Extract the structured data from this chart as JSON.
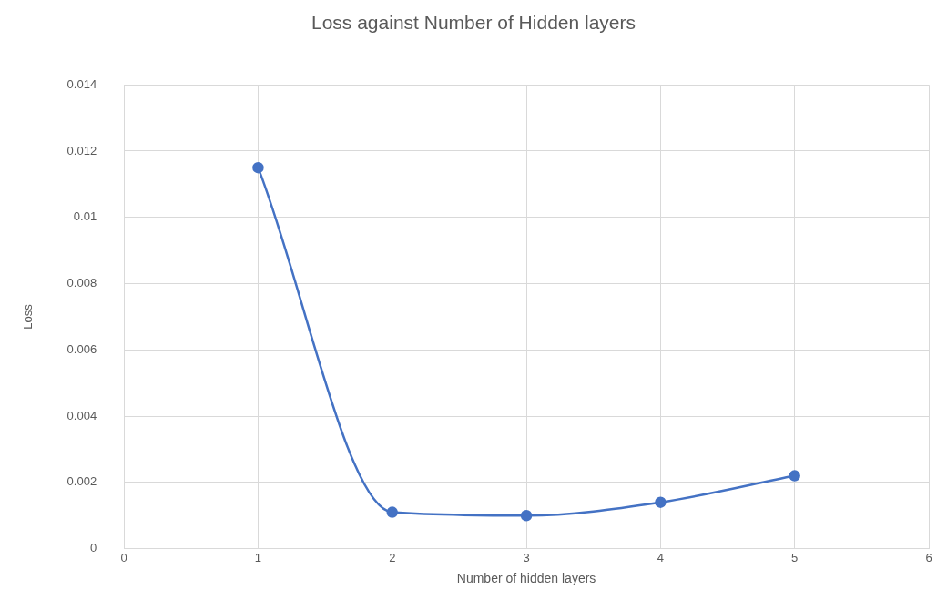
{
  "chart_data": {
    "type": "line",
    "title": "Loss against Number of Hidden layers",
    "xlabel": "Number of hidden layers",
    "ylabel": "Loss",
    "x": [
      1,
      2,
      3,
      4,
      5
    ],
    "series": [
      {
        "color": "#4472c4",
        "values": [
          0.0115,
          0.0011,
          0.001,
          0.0014,
          0.0022
        ]
      }
    ],
    "xlim": [
      0,
      6
    ],
    "xticks": [
      0,
      1,
      2,
      3,
      4,
      5,
      6
    ],
    "ylim": [
      0,
      0.014
    ],
    "yticks": [
      0,
      0.002,
      0.004,
      0.006,
      0.008,
      0.01,
      0.012,
      0.014
    ],
    "grid": true,
    "marker": "circle",
    "line_style": "solid"
  }
}
